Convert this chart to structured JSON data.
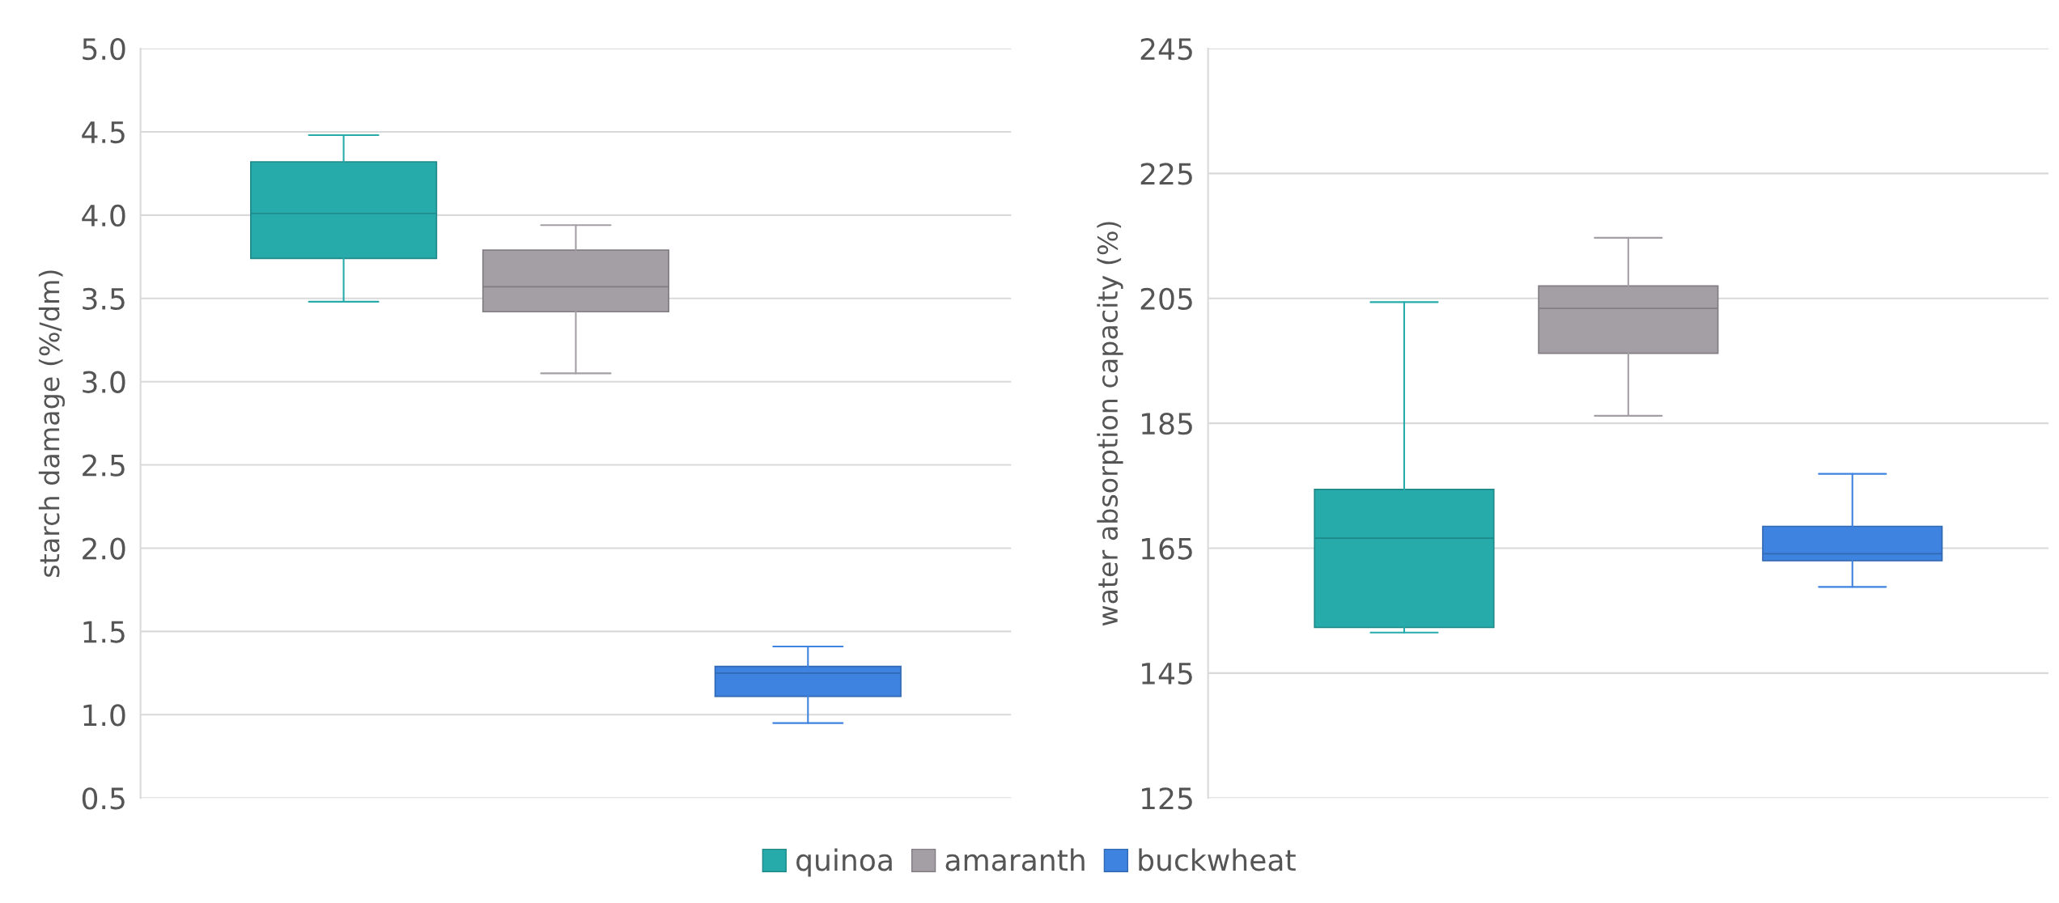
{
  "chart_data": [
    {
      "type": "box",
      "ylabel": "starch damage (%/dm)",
      "categories": [
        null
      ],
      "ylim": [
        0.5,
        5.0
      ],
      "yticks": [
        0.5,
        {
          "value": 1,
          "label": "1.0"
        },
        1.5,
        {
          "value": 2,
          "label": "2.0"
        },
        2.5,
        {
          "value": 3,
          "label": "3.0"
        },
        3.5,
        {
          "value": 4,
          "label": "4.0"
        },
        4.5,
        {
          "value": 5,
          "label": "5.0"
        }
      ],
      "grid": "y",
      "legend": "bottom",
      "series": [
        {
          "name": "quinoa",
          "color": "#26abaa",
          "boxes": [
            {
              "low": 3.48,
              "q1": 3.74,
              "median": 4.01,
              "q3": 4.32,
              "high": 4.48
            }
          ]
        },
        {
          "name": "amaranth",
          "color": "#a49ea5",
          "boxes": [
            {
              "low": 3.05,
              "q1": 3.42,
              "median": 3.57,
              "q3": 3.79,
              "high": 3.94
            }
          ]
        },
        {
          "name": "buckwheat",
          "color": "#3f83e0",
          "boxes": [
            {
              "low": 0.95,
              "q1": 1.11,
              "median": 1.25,
              "q3": 1.29,
              "high": 1.41
            }
          ]
        }
      ]
    },
    {
      "type": "box",
      "ylabel": "water absorption capacity (%)",
      "categories": [
        null
      ],
      "ylim": [
        125,
        245
      ],
      "yticks": [
        125,
        145,
        165,
        185,
        205,
        225,
        245
      ],
      "grid": "y",
      "series": [
        {
          "color": "#26abaa",
          "boxes": [
            {
              "low": 151.5,
              "q1": 152.3,
              "median": 166.6,
              "q3": 174.4,
              "high": 204.4
            }
          ]
        },
        {
          "color": "#a49ea5",
          "boxes": [
            {
              "low": 186.2,
              "q1": 196.2,
              "median": 203.4,
              "q3": 207.0,
              "high": 214.7
            }
          ]
        },
        {
          "color": "#3f83e0",
          "boxes": [
            {
              "low": 158.8,
              "q1": 163.0,
              "median": 164.1,
              "q3": 168.5,
              "high": 176.9
            }
          ]
        }
      ]
    }
  ]
}
